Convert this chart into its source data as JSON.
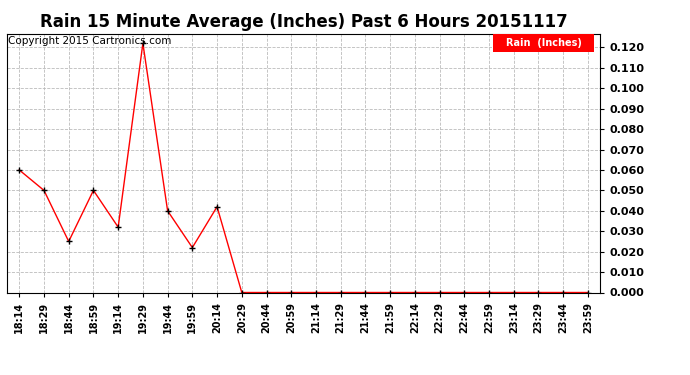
{
  "title": "Rain 15 Minute Average (Inches) Past 6 Hours 20151117",
  "copyright": "Copyright 2015 Cartronics.com",
  "legend_label": "Rain  (Inches)",
  "x_labels": [
    "18:14",
    "18:29",
    "18:44",
    "18:59",
    "19:14",
    "19:29",
    "19:44",
    "19:59",
    "20:14",
    "20:29",
    "20:44",
    "20:59",
    "21:14",
    "21:29",
    "21:44",
    "21:59",
    "22:14",
    "22:29",
    "22:44",
    "22:59",
    "23:14",
    "23:29",
    "23:44",
    "23:59"
  ],
  "y_values": [
    0.06,
    0.05,
    0.025,
    0.05,
    0.032,
    0.122,
    0.04,
    0.022,
    0.042,
    0.0,
    0.0,
    0.0,
    0.0,
    0.0,
    0.0,
    0.0,
    0.0,
    0.0,
    0.0,
    0.0,
    0.0,
    0.0,
    0.0,
    0.0
  ],
  "ylim": [
    0.0,
    0.1267
  ],
  "yticks": [
    0.0,
    0.01,
    0.02,
    0.03,
    0.04,
    0.05,
    0.06,
    0.07,
    0.08,
    0.09,
    0.1,
    0.11,
    0.12
  ],
  "line_color": "red",
  "marker_color": "black",
  "background_color": "#ffffff",
  "grid_color": "#bbbbbb",
  "title_fontsize": 12,
  "copyright_fontsize": 7.5,
  "tick_fontsize": 8,
  "xtick_fontsize": 7,
  "legend_bg": "red",
  "legend_fg": "white"
}
